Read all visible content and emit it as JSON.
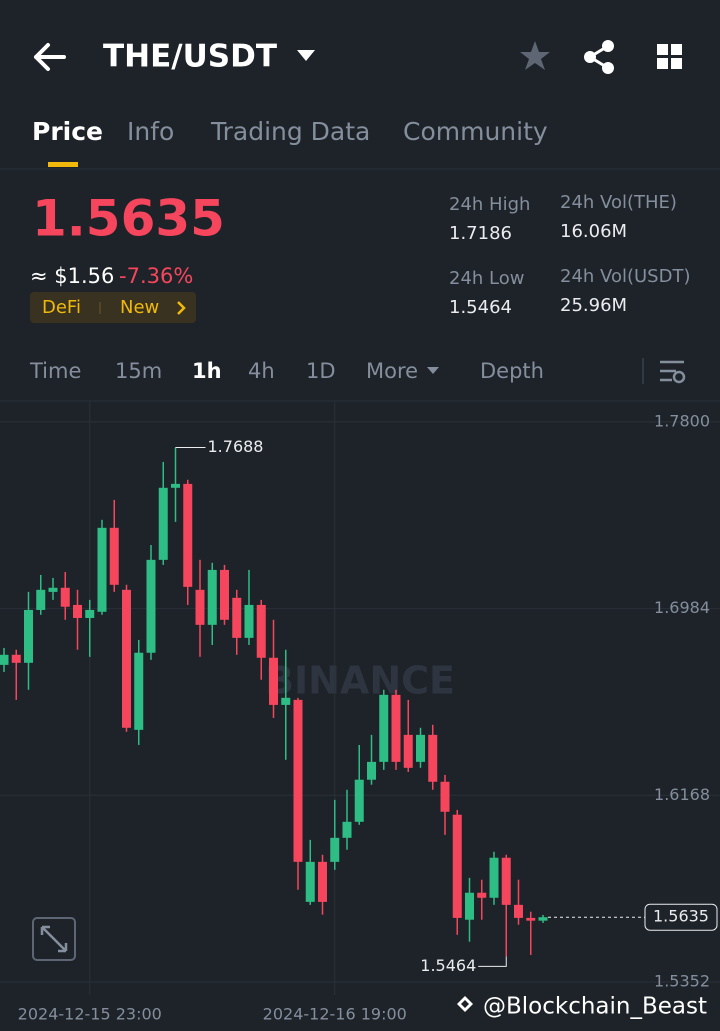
{
  "header": {
    "pair": "THE/USDT"
  },
  "tabs": [
    "Price",
    "Info",
    "Trading Data",
    "Community"
  ],
  "active_tab": 0,
  "price": {
    "last": "1.5635",
    "fiat": "≈ $1.56",
    "change": "-7.36%",
    "tags": [
      "DeFi",
      "New"
    ]
  },
  "stats": [
    {
      "label": "24h High",
      "value": "1.7186"
    },
    {
      "label": "24h Vol(THE)",
      "value": "16.06M"
    },
    {
      "label": "24h Low",
      "value": "1.5464"
    },
    {
      "label": "24h Vol(USDT)",
      "value": "25.96M"
    }
  ],
  "intervals": [
    "Time",
    "15m",
    "1h",
    "4h",
    "1D",
    "More",
    "Depth"
  ],
  "active_interval": 2,
  "overlay": "@Blockchain_Beast",
  "chart_data": {
    "type": "candlestick",
    "watermark": "BINANCE",
    "categories": [
      null,
      null,
      null,
      null,
      null,
      null,
      null,
      "2024-12-15 23:00",
      null,
      null,
      null,
      null,
      null,
      null,
      null,
      null,
      null,
      null,
      null,
      null,
      null,
      null,
      null,
      null,
      null,
      null,
      null,
      "2024-12-16 19:00",
      null,
      null,
      null,
      null,
      null,
      null,
      null,
      null,
      null,
      null,
      null,
      null,
      null,
      null,
      null,
      null,
      null
    ],
    "open": [
      1.6738,
      1.6782,
      1.6747,
      1.6978,
      1.7057,
      1.7075,
      1.7,
      1.6943,
      1.697,
      1.7337,
      1.7066,
      1.6454,
      1.6791,
      1.7197,
      1.7512,
      1.7529,
      1.7066,
      1.6913,
      1.7153,
      1.7031,
      1.6856,
      1.7,
      1.6769,
      1.6563,
      1.6585,
      1.5702,
      1.5877,
      1.5877,
      1.5982,
      1.6052,
      1.6236,
      1.6314,
      1.6607,
      1.6432,
      1.6314,
      1.6432,
      1.6227,
      1.6083,
      1.5624,
      1.5742,
      1.572,
      1.5895,
      1.5689,
      1.5632,
      1.562
    ],
    "high": [
      1.6812,
      1.6804,
      1.7057,
      1.7131,
      1.7118,
      1.7144,
      1.7066,
      1.7022,
      1.7372,
      1.7459,
      1.7088,
      1.6847,
      1.7262,
      1.7625,
      1.7688,
      1.7547,
      1.7197,
      1.7184,
      1.7175,
      1.7066,
      1.7153,
      1.7022,
      1.6935,
      1.6804,
      1.6594,
      1.5973,
      1.5908,
      1.6148,
      1.6192,
      1.6388,
      1.6432,
      1.6629,
      1.6629,
      1.6585,
      1.6463,
      1.6476,
      1.6257,
      1.6104,
      1.5807,
      1.5799,
      1.5921,
      1.5908,
      1.5799,
      1.5659,
      1.5645
    ],
    "low": [
      1.6707,
      1.6585,
      1.6629,
      1.6957,
      1.7022,
      1.6935,
      1.6804,
      1.6773,
      1.6957,
      1.7057,
      1.6445,
      1.6388,
      1.676,
      1.7175,
      1.7363,
      1.7,
      1.6773,
      1.6825,
      1.6913,
      1.6782,
      1.6825,
      1.6673,
      1.6506,
      1.6323,
      1.5755,
      1.5689,
      1.5646,
      1.5842,
      1.593,
      1.6039,
      1.6214,
      1.6279,
      1.6279,
      1.627,
      1.6288,
      1.6192,
      1.5995,
      1.5558,
      1.5528,
      1.5624,
      1.5689,
      1.5464,
      1.5602,
      1.547,
      1.561
    ],
    "close": [
      1.6782,
      1.6747,
      1.6978,
      1.7066,
      1.7075,
      1.6992,
      1.6943,
      1.6978,
      1.7337,
      1.7088,
      1.6463,
      1.6791,
      1.7197,
      1.7512,
      1.7529,
      1.7079,
      1.6913,
      1.7153,
      1.6935,
      1.6856,
      1.7,
      1.6769,
      1.6563,
      1.6594,
      1.5877,
      1.5877,
      1.5702,
      1.5982,
      1.6052,
      1.6236,
      1.6314,
      1.6607,
      1.6314,
      1.6288,
      1.6432,
      1.6227,
      1.6096,
      1.5632,
      1.5742,
      1.572,
      1.5895,
      1.5689,
      1.5632,
      1.562,
      1.5635
    ],
    "up_color": "#2ebd85",
    "down_color": "#f6465d",
    "ylim": [
      1.5295,
      1.7887
    ],
    "yticks": [
      {
        "value": 1.78,
        "label": "1.7800"
      },
      1.6984,
      1.6168,
      1.5352
    ],
    "grid": true,
    "max_index": 14,
    "min_index": 41
  }
}
